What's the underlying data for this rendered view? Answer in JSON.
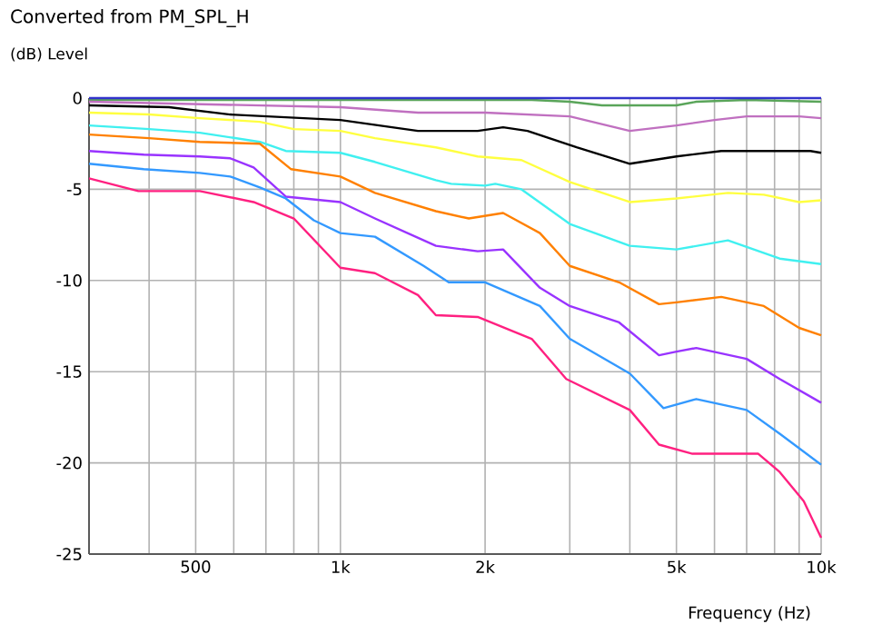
{
  "chart_data": {
    "type": "line",
    "title": "Converted from PM_SPL_H",
    "ylabel": "(dB)  Level",
    "xlabel": "Frequency  (Hz)",
    "log": "x",
    "grid": true,
    "marker": "none",
    "line_style": "solid",
    "xlim": [
      300,
      10000
    ],
    "ylim": [
      -25,
      0
    ],
    "xticks": [
      {
        "value": 400,
        "label": null
      },
      {
        "value": 500,
        "label": "500"
      },
      {
        "value": 600,
        "label": null
      },
      {
        "value": 700,
        "label": null
      },
      {
        "value": 800,
        "label": null
      },
      {
        "value": 900,
        "label": null
      },
      {
        "value": 1000,
        "label": "1k"
      },
      {
        "value": 2000,
        "label": "2k"
      },
      {
        "value": 3000,
        "label": null
      },
      {
        "value": 4000,
        "label": null
      },
      {
        "value": 5000,
        "label": "5k"
      },
      {
        "value": 6000,
        "label": null
      },
      {
        "value": 7000,
        "label": null
      },
      {
        "value": 8000,
        "label": null
      },
      {
        "value": 9000,
        "label": null
      },
      {
        "value": 10000,
        "label": "10k"
      }
    ],
    "yticks": [
      0,
      -5,
      -10,
      -15,
      -20,
      -25
    ],
    "series": [
      {
        "color": "#5aa55a",
        "x": [
          300,
          1000,
          2500,
          3000,
          3500,
          4000,
          5000,
          5500,
          7000,
          10000
        ],
        "values": [
          -0.1,
          -0.1,
          -0.1,
          -0.2,
          -0.4,
          -0.4,
          -0.4,
          -0.2,
          -0.1,
          -0.2
        ]
      },
      {
        "color": "#c070c0",
        "x": [
          300,
          1000,
          1450,
          2000,
          3000,
          4000,
          5000,
          6000,
          7000,
          9000,
          10000
        ],
        "values": [
          -0.2,
          -0.5,
          -0.8,
          -0.8,
          -1.0,
          -1.8,
          -1.5,
          -1.2,
          -1.0,
          -1.0,
          -1.1
        ]
      },
      {
        "color": "#000000",
        "x": [
          300,
          440,
          590,
          840,
          1000,
          1450,
          1930,
          2180,
          2450,
          3100,
          4000,
          5000,
          6200,
          9500,
          10000
        ],
        "values": [
          -0.4,
          -0.5,
          -0.9,
          -1.1,
          -1.2,
          -1.8,
          -1.8,
          -1.6,
          -1.8,
          -2.7,
          -3.6,
          -3.2,
          -2.9,
          -2.9,
          -3.0
        ]
      },
      {
        "color": "#ffff40",
        "x": [
          300,
          400,
          510,
          680,
          800,
          1000,
          1180,
          1580,
          1930,
          2380,
          3000,
          4000,
          5000,
          6400,
          7600,
          9000,
          10000
        ],
        "values": [
          -0.8,
          -0.9,
          -1.1,
          -1.3,
          -1.7,
          -1.8,
          -2.2,
          -2.7,
          -3.2,
          -3.4,
          -4.6,
          -5.7,
          -5.5,
          -5.2,
          -5.3,
          -5.7,
          -5.6
        ]
      },
      {
        "color": "#40f0f0",
        "x": [
          300,
          400,
          510,
          680,
          770,
          1000,
          1180,
          1580,
          1700,
          2000,
          2100,
          2380,
          3000,
          4000,
          5000,
          6400,
          8200,
          10000
        ],
        "values": [
          -1.5,
          -1.7,
          -1.9,
          -2.4,
          -2.9,
          -3.0,
          -3.5,
          -4.5,
          -4.7,
          -4.8,
          -4.7,
          -5.0,
          -6.9,
          -8.1,
          -8.3,
          -7.8,
          -8.8,
          -9.1
        ]
      },
      {
        "color": "#ff8000",
        "x": [
          300,
          400,
          510,
          680,
          790,
          1000,
          1180,
          1580,
          1850,
          2180,
          2600,
          3000,
          3800,
          4600,
          5000,
          6200,
          7600,
          9000,
          10000
        ],
        "values": [
          -2.0,
          -2.2,
          -2.4,
          -2.5,
          -3.9,
          -4.3,
          -5.2,
          -6.2,
          -6.6,
          -6.3,
          -7.4,
          -9.2,
          -10.1,
          -11.3,
          -11.2,
          -10.9,
          -11.4,
          -12.6,
          -13.0
        ]
      },
      {
        "color": "#9933ff",
        "x": [
          300,
          390,
          510,
          590,
          660,
          770,
          1000,
          1180,
          1580,
          1930,
          2180,
          2600,
          3000,
          3800,
          4600,
          5000,
          5500,
          7000,
          8200,
          10000
        ],
        "values": [
          -2.9,
          -3.1,
          -3.2,
          -3.3,
          -3.8,
          -5.4,
          -5.7,
          -6.6,
          -8.1,
          -8.4,
          -8.3,
          -10.4,
          -11.4,
          -12.3,
          -14.1,
          -13.9,
          -13.7,
          -14.3,
          -15.4,
          -16.7
        ]
      },
      {
        "color": "#3399ff",
        "x": [
          300,
          390,
          510,
          590,
          680,
          770,
          880,
          1000,
          1180,
          1490,
          1680,
          2000,
          2600,
          3000,
          4000,
          4700,
          5500,
          7000,
          8200,
          10000
        ],
        "values": [
          -3.6,
          -3.9,
          -4.1,
          -4.3,
          -4.9,
          -5.5,
          -6.7,
          -7.4,
          -7.6,
          -9.2,
          -10.1,
          -10.1,
          -11.4,
          -13.2,
          -15.1,
          -17.0,
          -16.5,
          -17.1,
          -18.4,
          -20.1
        ]
      },
      {
        "color": "#ff2080",
        "x": [
          300,
          380,
          510,
          660,
          800,
          1000,
          1180,
          1450,
          1580,
          1930,
          2500,
          2950,
          4000,
          4600,
          5400,
          7400,
          8200,
          9200,
          10000
        ],
        "values": [
          -4.4,
          -5.1,
          -5.1,
          -5.7,
          -6.6,
          -9.3,
          -9.6,
          -10.8,
          -11.9,
          -12.0,
          -13.2,
          -15.4,
          -17.1,
          -19.0,
          -19.5,
          -19.5,
          -20.5,
          -22.1,
          -24.1
        ]
      },
      {
        "color": "#3333cc",
        "x": [
          300,
          10000
        ],
        "values": [
          0,
          0
        ]
      }
    ]
  }
}
